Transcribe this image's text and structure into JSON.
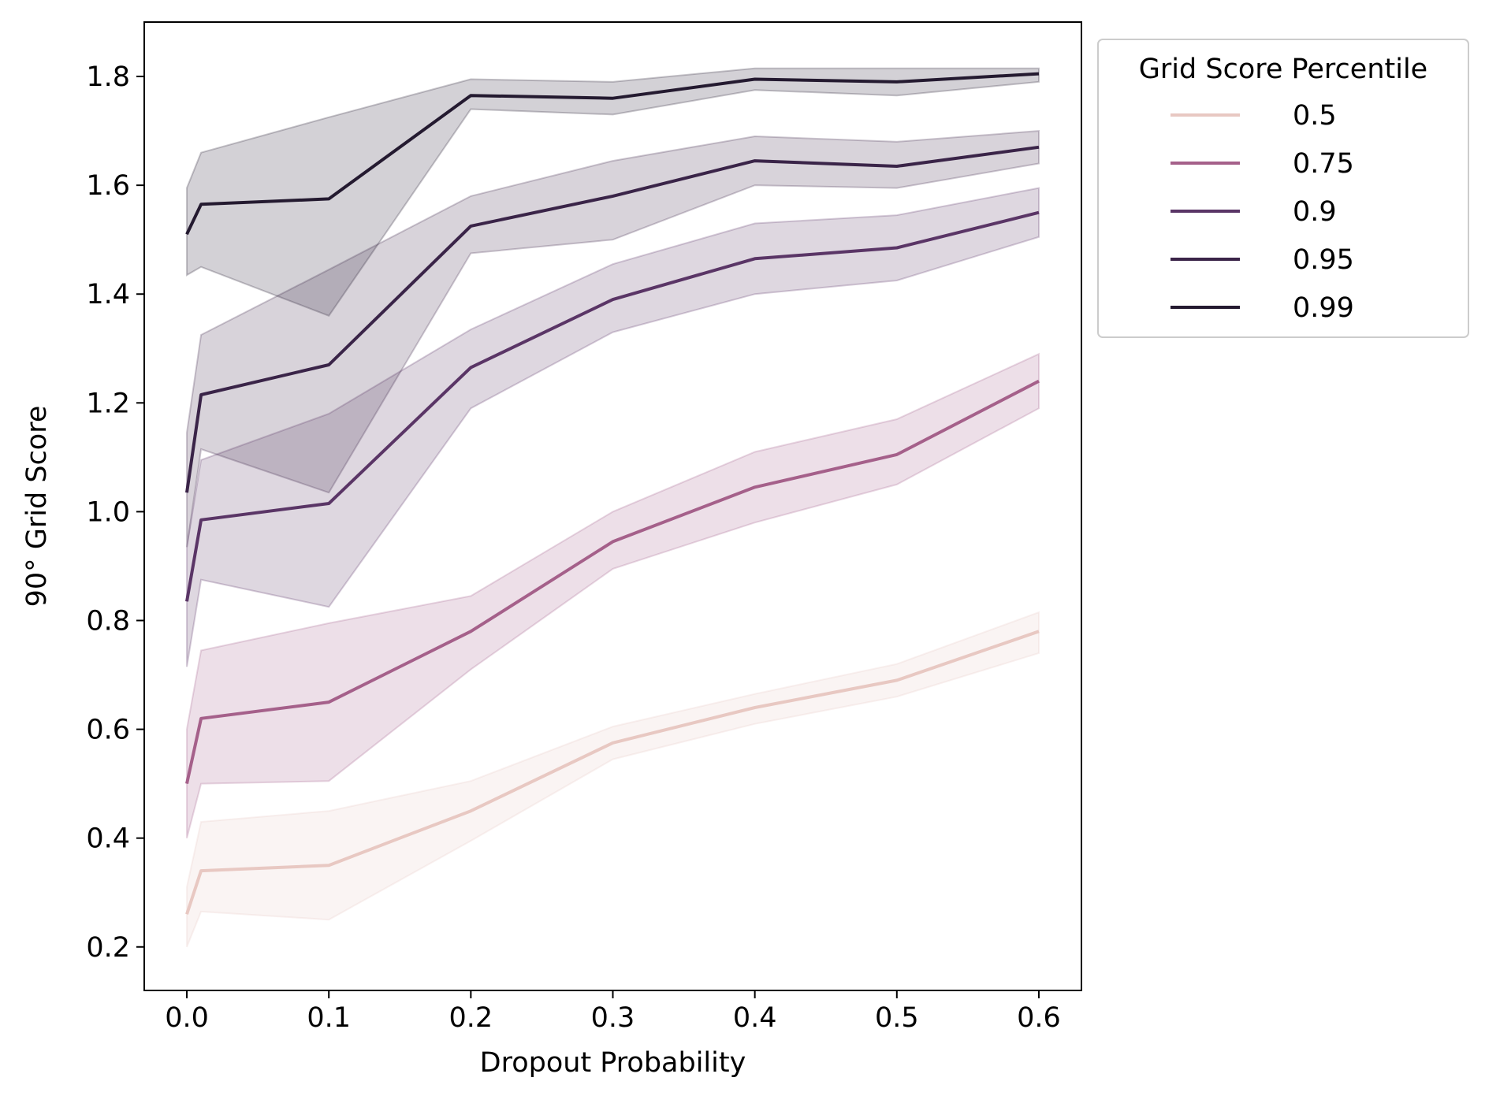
{
  "chart_data": {
    "type": "line",
    "title": "",
    "xlabel": "Dropout Probability",
    "ylabel": "90° Grid Score",
    "xlim": [
      -0.03,
      0.63
    ],
    "ylim": [
      0.12,
      1.9
    ],
    "xticks": [
      0.0,
      0.1,
      0.2,
      0.3,
      0.4,
      0.5,
      0.6
    ],
    "xtick_labels": [
      "0.0",
      "0.1",
      "0.2",
      "0.3",
      "0.4",
      "0.5",
      "0.6"
    ],
    "yticks": [
      0.2,
      0.4,
      0.6,
      0.8,
      1.0,
      1.2,
      1.4,
      1.6,
      1.8
    ],
    "ytick_labels": [
      "0.2",
      "0.4",
      "0.6",
      "0.8",
      "1.0",
      "1.2",
      "1.4",
      "1.6",
      "1.8"
    ],
    "grid": false,
    "legend_position": "outside-top-right",
    "legend_title": "Grid Score Percentile",
    "x": [
      0.0,
      0.01,
      0.1,
      0.2,
      0.3,
      0.4,
      0.5,
      0.6
    ],
    "series": [
      {
        "name": "0.5",
        "color": "#e8c8c2",
        "values": [
          0.26,
          0.34,
          0.35,
          0.45,
          0.575,
          0.64,
          0.69,
          0.78
        ],
        "lower": [
          0.2,
          0.265,
          0.25,
          0.395,
          0.545,
          0.61,
          0.66,
          0.74
        ],
        "upper": [
          0.31,
          0.43,
          0.45,
          0.505,
          0.605,
          0.665,
          0.72,
          0.815
        ]
      },
      {
        "name": "0.75",
        "color": "#a5608a",
        "values": [
          0.5,
          0.62,
          0.65,
          0.78,
          0.945,
          1.045,
          1.105,
          1.24
        ],
        "lower": [
          0.4,
          0.5,
          0.505,
          0.71,
          0.895,
          0.98,
          1.05,
          1.19
        ],
        "upper": [
          0.6,
          0.745,
          0.795,
          0.845,
          1.0,
          1.11,
          1.17,
          1.29
        ]
      },
      {
        "name": "0.9",
        "color": "#5a3566",
        "values": [
          0.835,
          0.985,
          1.015,
          1.265,
          1.39,
          1.465,
          1.485,
          1.55
        ],
        "lower": [
          0.715,
          0.875,
          0.825,
          1.19,
          1.33,
          1.4,
          1.425,
          1.505
        ],
        "upper": [
          0.935,
          1.095,
          1.18,
          1.335,
          1.455,
          1.53,
          1.545,
          1.595
        ]
      },
      {
        "name": "0.95",
        "color": "#3a2448",
        "values": [
          1.035,
          1.215,
          1.27,
          1.525,
          1.58,
          1.645,
          1.635,
          1.67
        ],
        "lower": [
          0.935,
          1.115,
          1.035,
          1.475,
          1.5,
          1.6,
          1.595,
          1.64
        ],
        "upper": [
          1.145,
          1.325,
          1.445,
          1.58,
          1.645,
          1.69,
          1.68,
          1.7
        ]
      },
      {
        "name": "0.99",
        "color": "#241a30",
        "values": [
          1.51,
          1.565,
          1.575,
          1.765,
          1.76,
          1.795,
          1.79,
          1.805
        ],
        "lower": [
          1.435,
          1.45,
          1.36,
          1.74,
          1.73,
          1.775,
          1.765,
          1.79
        ],
        "upper": [
          1.595,
          1.66,
          1.725,
          1.795,
          1.79,
          1.815,
          1.815,
          1.815
        ]
      }
    ]
  }
}
